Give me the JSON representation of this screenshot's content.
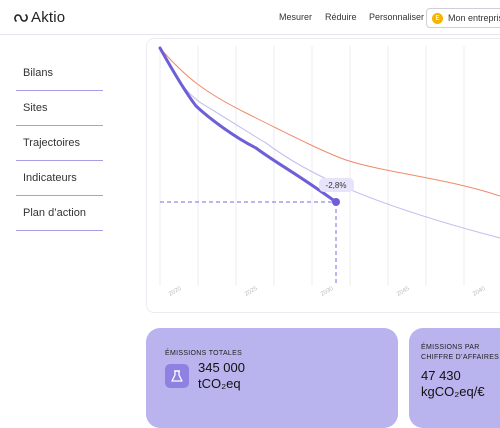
{
  "header": {
    "logo_text": "Aktio",
    "nav": [
      "Mesurer",
      "Réduire",
      "Personnaliser"
    ],
    "account_avatar": "E",
    "account_label": "Mon entreprise"
  },
  "sidebar": {
    "items": [
      {
        "label": "Bilans"
      },
      {
        "label": "Sites"
      },
      {
        "label": "Trajectoires"
      },
      {
        "label": "Indicateurs"
      },
      {
        "label": "Plan d’action"
      }
    ]
  },
  "chart": {
    "badge": "-2,8%",
    "x_ticks": [
      "2020",
      "2025",
      "2030",
      "2045",
      "2040"
    ]
  },
  "kpis": [
    {
      "title": "ÉMISSIONS TOTALES",
      "value": "345 000",
      "unit": "tCO₂eq",
      "icon": "factory-icon"
    },
    {
      "title_line1": "ÉMISSIONS PAR",
      "title_line2": "CHIFFRE D’AFFAIRES",
      "value": "47 430",
      "unit": "kgCO₂eq/€"
    }
  ],
  "colors": {
    "accent": "#7a6be0",
    "accent_light": "#b9b3ee",
    "trajectory_red": "#f08a6a",
    "trajectory_lavender": "#c8c0f0"
  }
}
